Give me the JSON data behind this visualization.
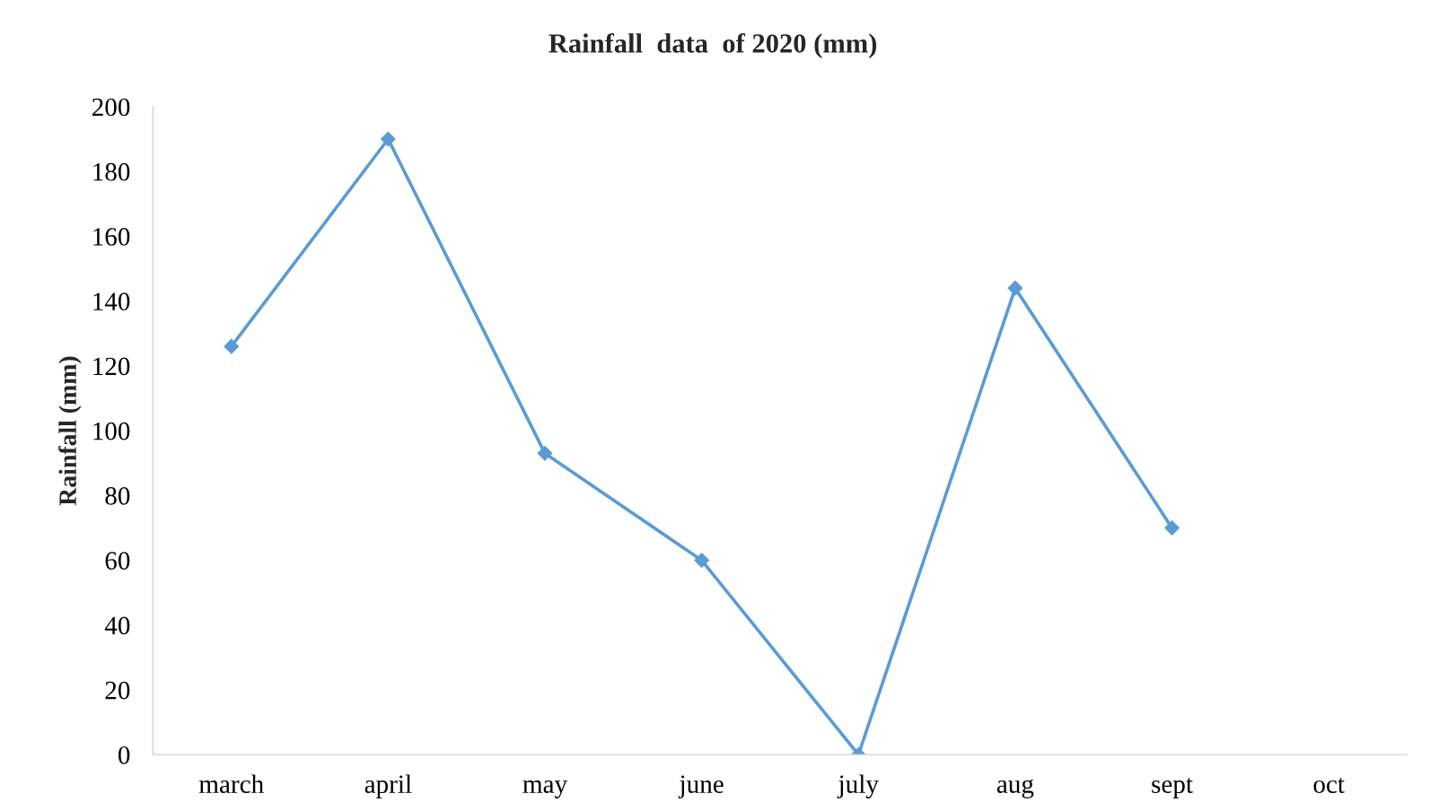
{
  "chart_data": {
    "type": "line",
    "title": "Rainfall  data  of 2020 (mm)",
    "ylabel": "Rainfall (mm)",
    "categories": [
      "march",
      "april",
      "may",
      "june",
      "july",
      "aug",
      "sept",
      "oct"
    ],
    "series": [
      {
        "color": "#5b9bd5",
        "values": [
          126,
          190,
          93,
          60,
          0,
          144,
          70,
          null
        ]
      }
    ],
    "ylim": [
      0,
      200
    ],
    "yticks": [
      0,
      20,
      40,
      60,
      80,
      100,
      120,
      140,
      160,
      180,
      200
    ],
    "marker": "diamond",
    "line_style": "solid"
  }
}
